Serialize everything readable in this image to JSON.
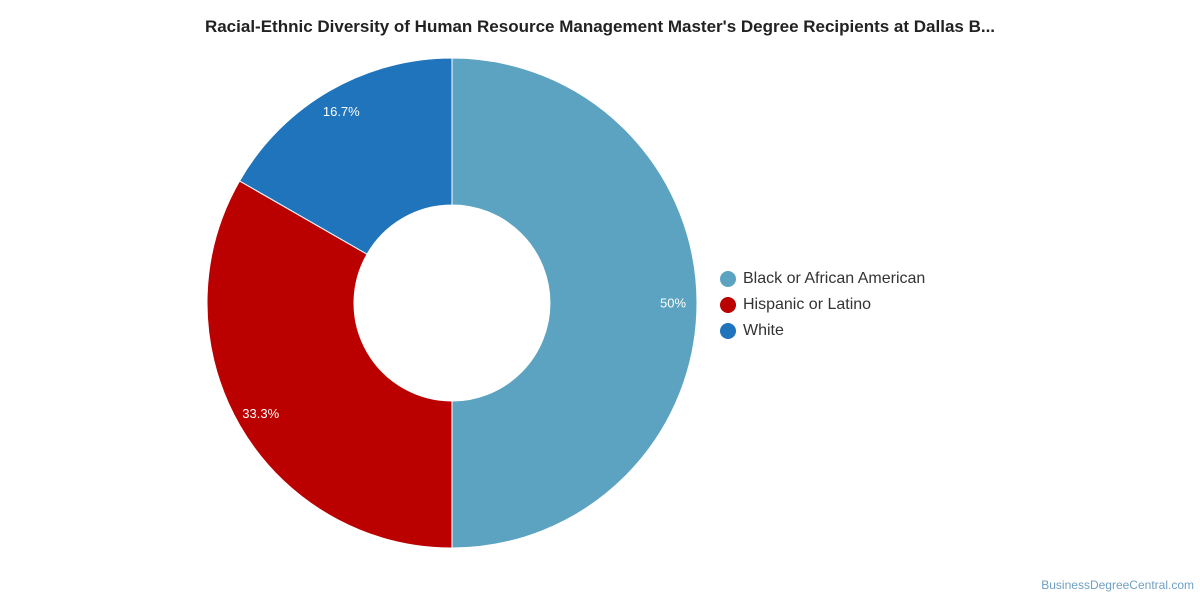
{
  "chart_data": {
    "type": "pie",
    "variant": "donut",
    "title": "Racial-Ethnic Diversity of Human Resource Management Master's Degree Recipients at Dallas B...",
    "categories": [
      "Black or African American",
      "Hispanic or Latino",
      "White"
    ],
    "values": [
      50,
      33.3,
      16.7
    ],
    "labels": [
      "50%",
      "33.3%",
      "16.7%"
    ],
    "colors": [
      "#5ba3c0",
      "#bb0000",
      "#1f74bb"
    ],
    "legend_position": "right"
  },
  "credit": "BusinessDegreeCentral.com"
}
